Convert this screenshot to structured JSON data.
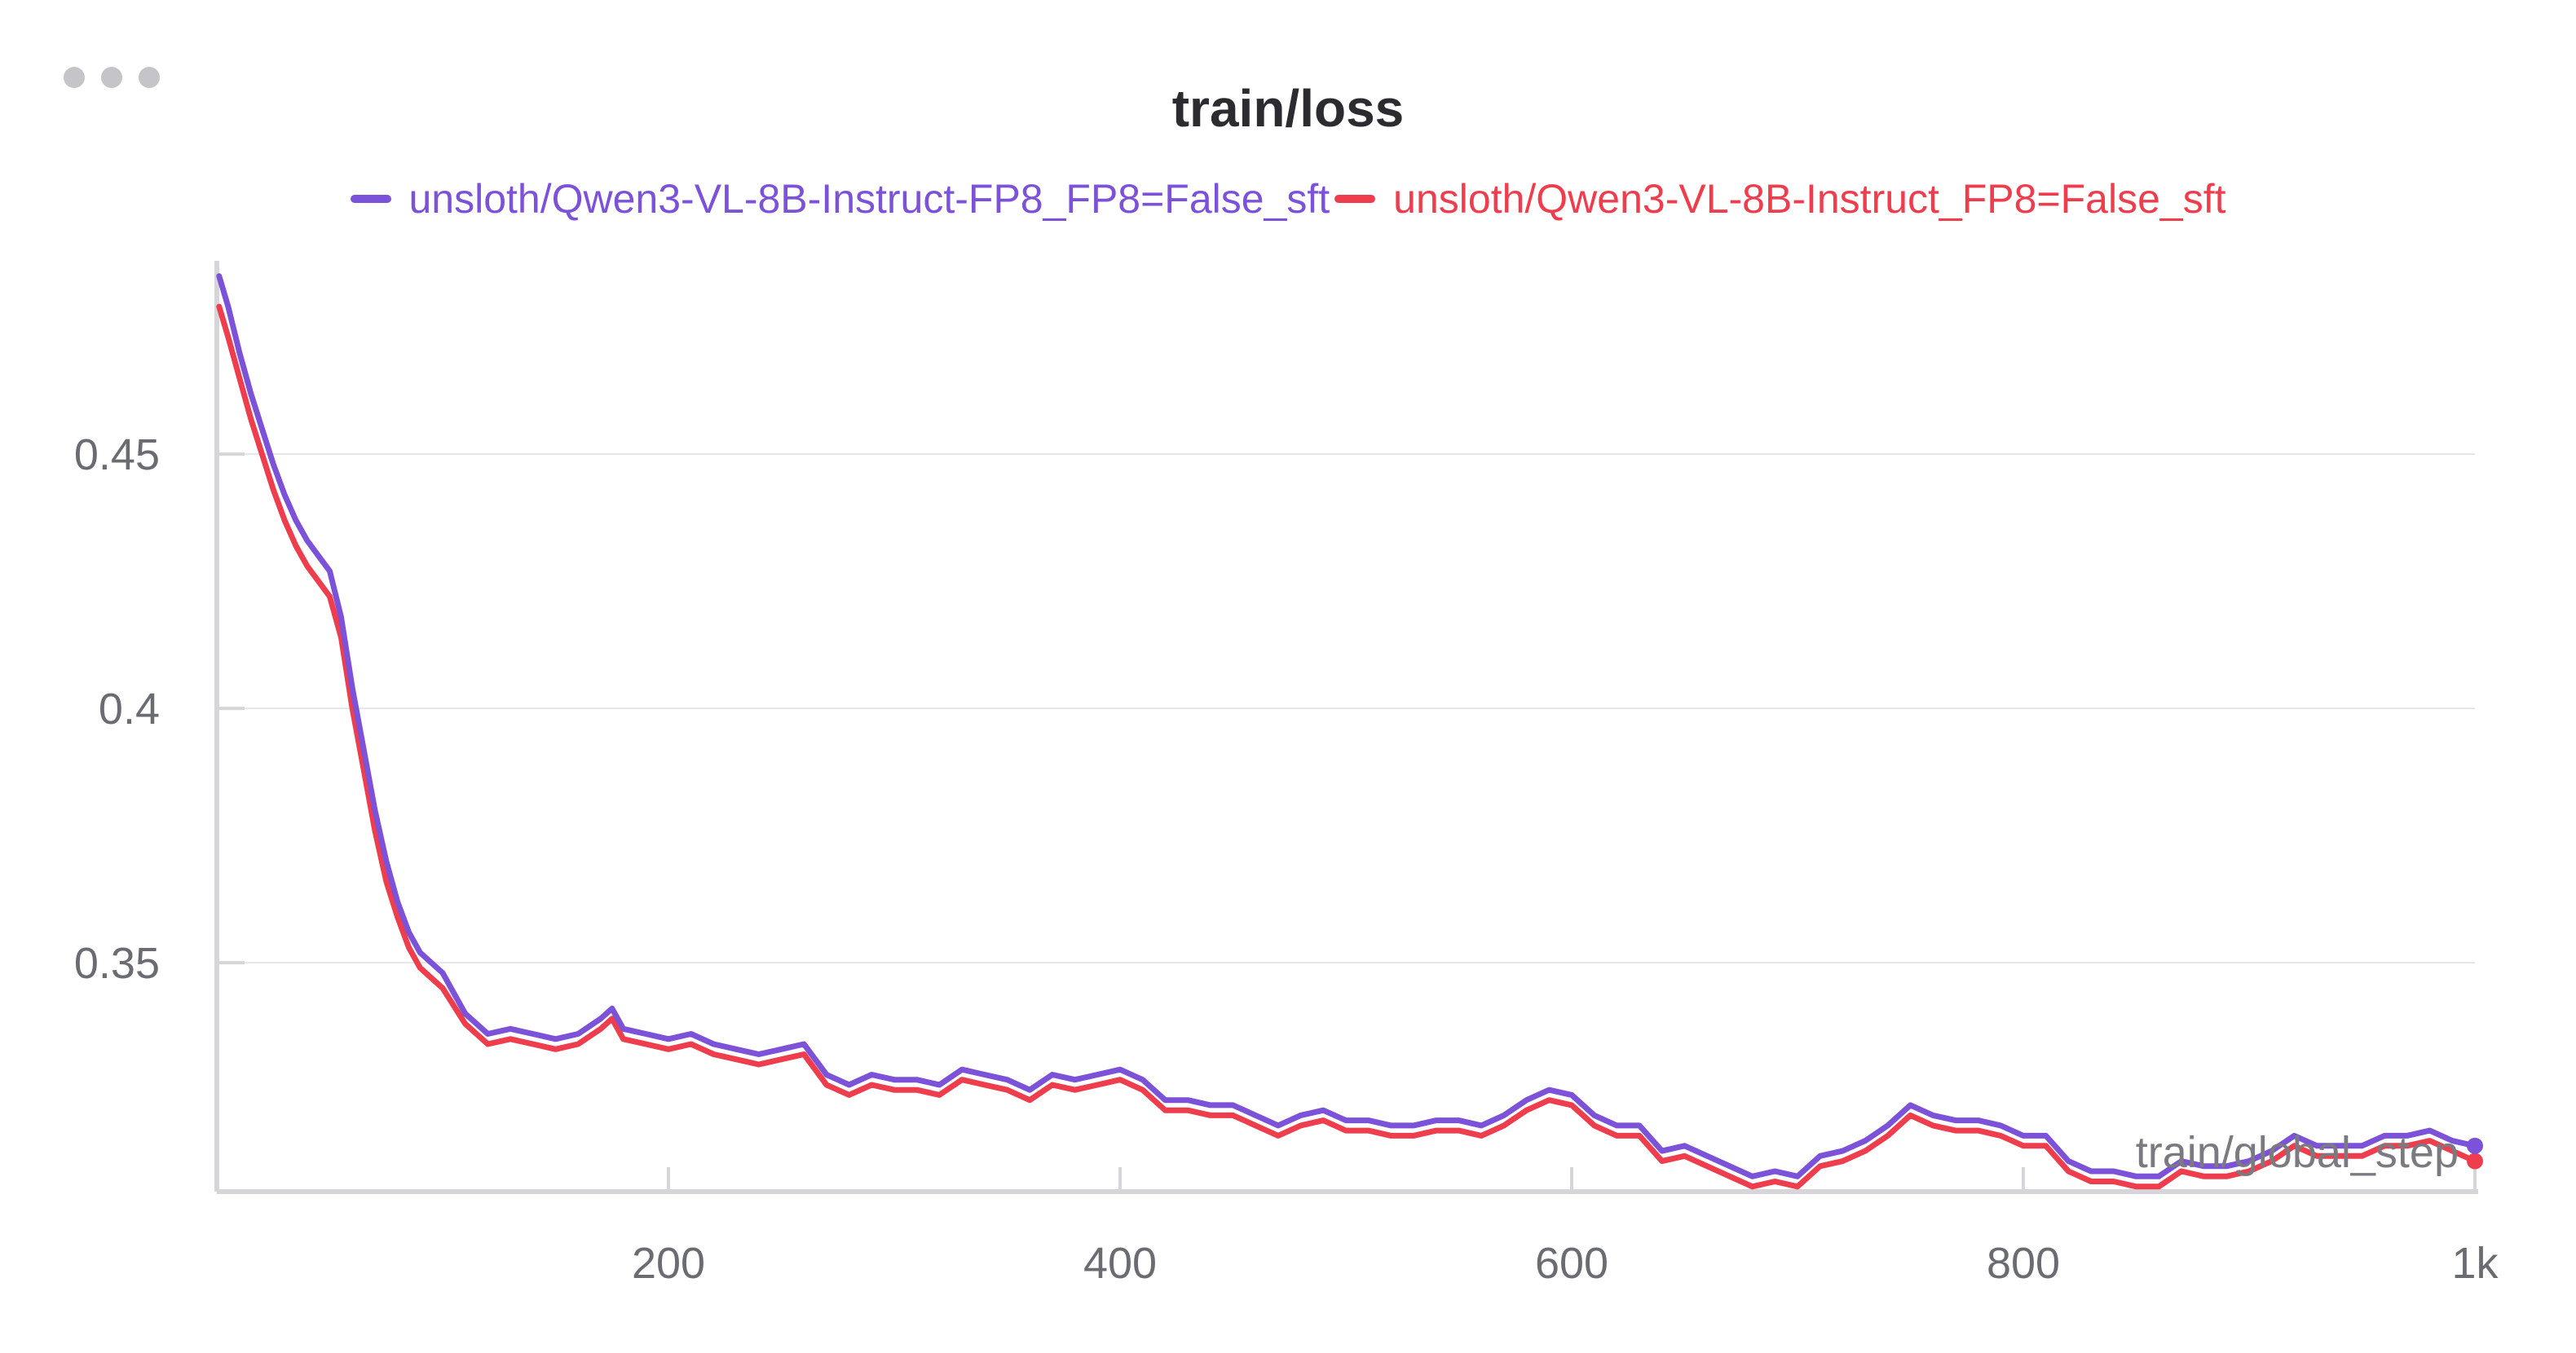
{
  "panel": {
    "menu_icon": "ellipsis-icon"
  },
  "colors": {
    "series_a": "#7b52d8",
    "series_b": "#ee3e4e",
    "grid": "#e6e6ea",
    "axis": "#d6d6da"
  },
  "chart_data": {
    "type": "line",
    "title": "train/loss",
    "xlabel": "train/global_step",
    "ylabel": "",
    "xlim": [
      0,
      1000
    ],
    "ylim": [
      0.305,
      0.488
    ],
    "xticks": [
      {
        "value": 200,
        "label": "200"
      },
      {
        "value": 400,
        "label": "400"
      },
      {
        "value": 600,
        "label": "600"
      },
      {
        "value": 800,
        "label": "800"
      },
      {
        "value": 1000,
        "label": "1k"
      }
    ],
    "yticks": [
      {
        "value": 0.35,
        "label": "0.35"
      },
      {
        "value": 0.4,
        "label": "0.4"
      },
      {
        "value": 0.45,
        "label": "0.45"
      }
    ],
    "grid": true,
    "legend_position": "top-center",
    "series": [
      {
        "name": "unsloth/Qwen3-VL-8B-Instruct-FP8_FP8=False_sft",
        "color": "#7b52d8",
        "x": [
          1,
          5,
          10,
          15,
          20,
          25,
          30,
          35,
          40,
          45,
          50,
          55,
          60,
          65,
          70,
          75,
          80,
          85,
          90,
          95,
          100,
          110,
          120,
          130,
          140,
          150,
          160,
          170,
          175,
          180,
          190,
          200,
          210,
          220,
          230,
          240,
          250,
          260,
          270,
          280,
          290,
          300,
          310,
          320,
          330,
          340,
          350,
          360,
          370,
          380,
          390,
          400,
          410,
          420,
          430,
          440,
          450,
          460,
          470,
          480,
          490,
          500,
          510,
          520,
          530,
          540,
          550,
          560,
          570,
          580,
          590,
          600,
          610,
          620,
          630,
          640,
          650,
          660,
          670,
          680,
          690,
          700,
          710,
          720,
          730,
          740,
          750,
          760,
          770,
          780,
          790,
          800,
          810,
          820,
          830,
          840,
          850,
          860,
          870,
          880,
          890,
          900,
          910,
          920,
          930,
          940,
          950,
          960,
          970,
          980,
          990,
          1000
        ],
        "y": [
          0.485,
          0.479,
          0.47,
          0.462,
          0.455,
          0.448,
          0.442,
          0.437,
          0.433,
          0.43,
          0.427,
          0.418,
          0.404,
          0.392,
          0.38,
          0.37,
          0.362,
          0.356,
          0.352,
          0.35,
          0.348,
          0.34,
          0.336,
          0.337,
          0.336,
          0.335,
          0.336,
          0.339,
          0.341,
          0.337,
          0.336,
          0.335,
          0.336,
          0.334,
          0.333,
          0.332,
          0.333,
          0.334,
          0.328,
          0.326,
          0.328,
          0.327,
          0.327,
          0.326,
          0.329,
          0.328,
          0.327,
          0.325,
          0.328,
          0.327,
          0.328,
          0.329,
          0.327,
          0.323,
          0.323,
          0.322,
          0.322,
          0.32,
          0.318,
          0.32,
          0.321,
          0.319,
          0.319,
          0.318,
          0.318,
          0.319,
          0.319,
          0.318,
          0.32,
          0.323,
          0.325,
          0.324,
          0.32,
          0.318,
          0.318,
          0.313,
          0.314,
          0.312,
          0.31,
          0.308,
          0.309,
          0.308,
          0.312,
          0.313,
          0.315,
          0.318,
          0.322,
          0.32,
          0.319,
          0.319,
          0.318,
          0.316,
          0.316,
          0.311,
          0.309,
          0.309,
          0.308,
          0.308,
          0.311,
          0.31,
          0.31,
          0.311,
          0.313,
          0.316,
          0.314,
          0.314,
          0.314,
          0.316,
          0.316,
          0.317,
          0.315,
          0.314
        ]
      },
      {
        "name": "unsloth/Qwen3-VL-8B-Instruct_FP8=False_sft",
        "color": "#ee3e4e",
        "x": [
          1,
          5,
          10,
          15,
          20,
          25,
          30,
          35,
          40,
          45,
          50,
          55,
          60,
          65,
          70,
          75,
          80,
          85,
          90,
          95,
          100,
          110,
          120,
          130,
          140,
          150,
          160,
          170,
          175,
          180,
          190,
          200,
          210,
          220,
          230,
          240,
          250,
          260,
          270,
          280,
          290,
          300,
          310,
          320,
          330,
          340,
          350,
          360,
          370,
          380,
          390,
          400,
          410,
          420,
          430,
          440,
          450,
          460,
          470,
          480,
          490,
          500,
          510,
          520,
          530,
          540,
          550,
          560,
          570,
          580,
          590,
          600,
          610,
          620,
          630,
          640,
          650,
          660,
          670,
          680,
          690,
          700,
          710,
          720,
          730,
          740,
          750,
          760,
          770,
          780,
          790,
          800,
          810,
          820,
          830,
          840,
          850,
          860,
          870,
          880,
          890,
          900,
          910,
          920,
          930,
          940,
          950,
          960,
          970,
          980,
          990,
          1000
        ],
        "y": [
          0.479,
          0.473,
          0.465,
          0.457,
          0.45,
          0.443,
          0.437,
          0.432,
          0.428,
          0.425,
          0.422,
          0.414,
          0.4,
          0.388,
          0.376,
          0.366,
          0.359,
          0.353,
          0.349,
          0.347,
          0.345,
          0.338,
          0.334,
          0.335,
          0.334,
          0.333,
          0.334,
          0.337,
          0.339,
          0.335,
          0.334,
          0.333,
          0.334,
          0.332,
          0.331,
          0.33,
          0.331,
          0.332,
          0.326,
          0.324,
          0.326,
          0.325,
          0.325,
          0.324,
          0.327,
          0.326,
          0.325,
          0.323,
          0.326,
          0.325,
          0.326,
          0.327,
          0.325,
          0.321,
          0.321,
          0.32,
          0.32,
          0.318,
          0.316,
          0.318,
          0.319,
          0.317,
          0.317,
          0.316,
          0.316,
          0.317,
          0.317,
          0.316,
          0.318,
          0.321,
          0.323,
          0.322,
          0.318,
          0.316,
          0.316,
          0.311,
          0.312,
          0.31,
          0.308,
          0.306,
          0.307,
          0.306,
          0.31,
          0.311,
          0.313,
          0.316,
          0.32,
          0.318,
          0.317,
          0.317,
          0.316,
          0.314,
          0.314,
          0.309,
          0.307,
          0.307,
          0.306,
          0.306,
          0.309,
          0.308,
          0.308,
          0.309,
          0.311,
          0.314,
          0.312,
          0.312,
          0.312,
          0.314,
          0.314,
          0.315,
          0.313,
          0.311
        ]
      }
    ]
  }
}
